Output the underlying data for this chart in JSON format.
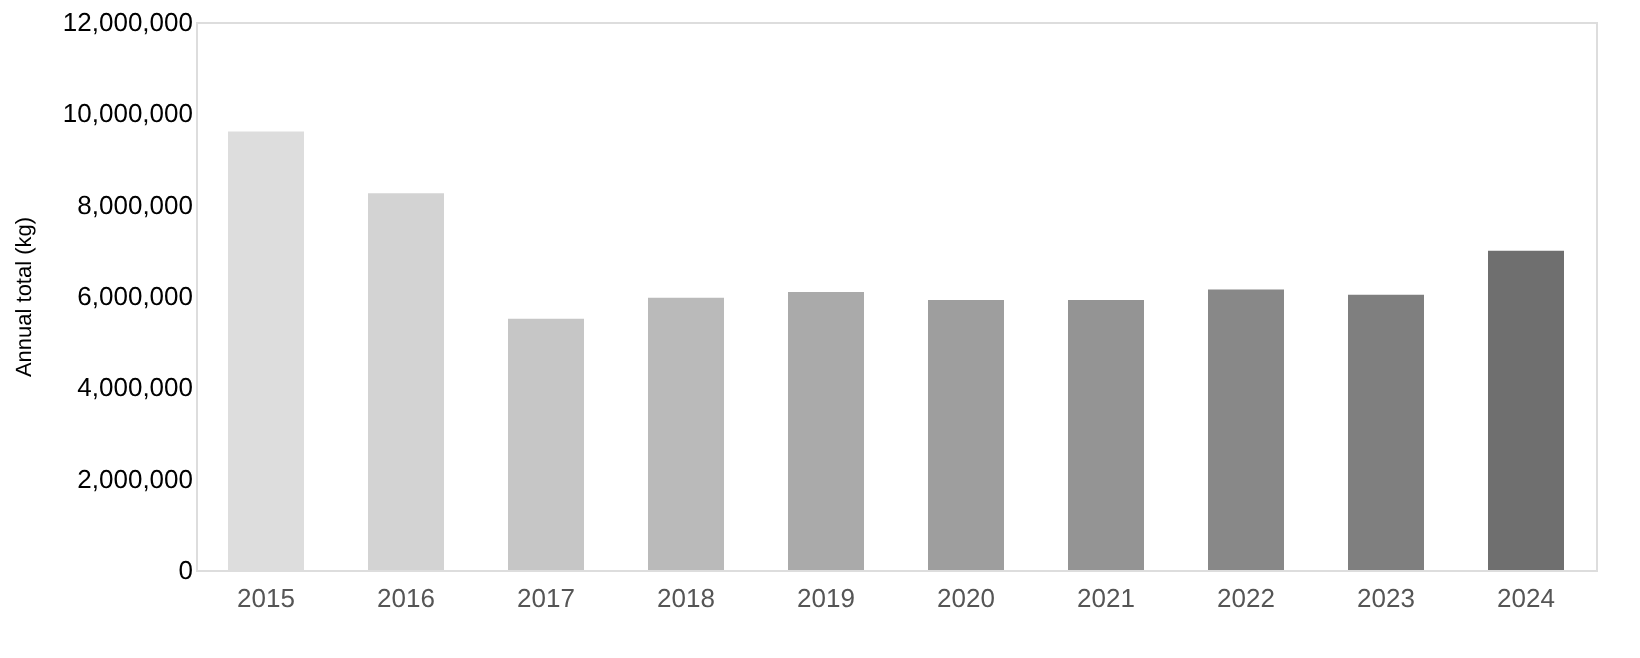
{
  "chart_data": {
    "type": "bar",
    "ylabel": "Annual total (kg)",
    "categories": [
      "2015",
      "2016",
      "2017",
      "2018",
      "2019",
      "2020",
      "2021",
      "2022",
      "2023",
      "2024"
    ],
    "values": [
      9600000,
      8250000,
      5500000,
      5960000,
      6090000,
      5910000,
      5910000,
      6140000,
      6030000,
      6990000
    ],
    "colors": [
      "#dddddd",
      "#d3d3d3",
      "#c6c6c6",
      "#bababa",
      "#aaaaaa",
      "#9e9e9e",
      "#949494",
      "#888888",
      "#7f7f7f",
      "#6f6f6f"
    ],
    "ylim": [
      0,
      12000000
    ],
    "yticks": [
      0,
      {
        "value": 2000000,
        "label": "2,000,000"
      },
      {
        "value": 4000000,
        "label": "4,000,000"
      },
      {
        "value": 6000000,
        "label": "6,000,000"
      },
      {
        "value": 8000000,
        "label": "8,000,000"
      },
      {
        "value": 10000000,
        "label": "10,000,000"
      },
      {
        "value": 12000000,
        "label": "12,000,000"
      }
    ],
    "grid": false
  }
}
